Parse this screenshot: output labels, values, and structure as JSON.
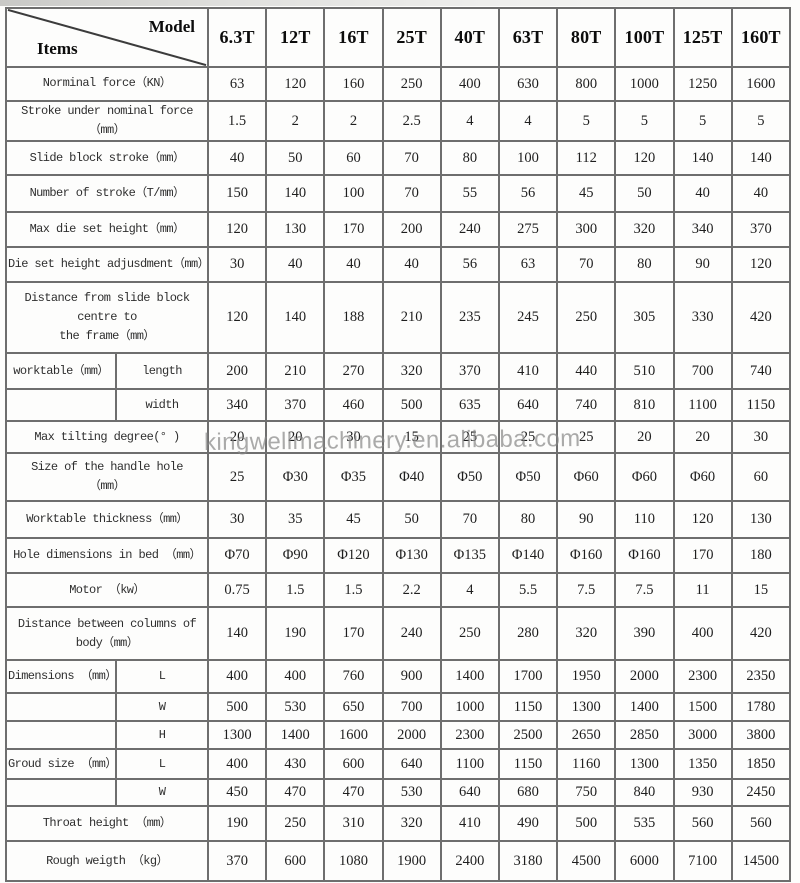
{
  "watermark": "kingwellmachinery.en.alibaba.com",
  "header": {
    "model_label": "Model",
    "items_label": "Items",
    "columns": [
      "6.3T",
      "12T",
      "16T",
      "25T",
      "40T",
      "63T",
      "80T",
      "100T",
      "125T",
      "160T"
    ]
  },
  "rows": [
    {
      "label": "Norminal force（KN）",
      "values": [
        "63",
        "120",
        "160",
        "250",
        "400",
        "630",
        "800",
        "1000",
        "1250",
        "1600"
      ]
    },
    {
      "label": "Stroke under nominal force（mm）",
      "values": [
        "1.5",
        "2",
        "2",
        "2.5",
        "4",
        "4",
        "5",
        "5",
        "5",
        "5"
      ]
    },
    {
      "label": "Slide block stroke（mm）",
      "values": [
        "40",
        "50",
        "60",
        "70",
        "80",
        "100",
        "112",
        "120",
        "140",
        "140"
      ]
    },
    {
      "label": "Number of stroke（T/mm）",
      "values": [
        "150",
        "140",
        "100",
        "70",
        "55",
        "56",
        "45",
        "50",
        "40",
        "40"
      ]
    },
    {
      "label": "Max die set height（mm）",
      "values": [
        "120",
        "130",
        "170",
        "200",
        "240",
        "275",
        "300",
        "320",
        "340",
        "370"
      ]
    },
    {
      "label": "Die set height adjusdment（mm）",
      "values": [
        "30",
        "40",
        "40",
        "40",
        "56",
        "63",
        "70",
        "80",
        "90",
        "120"
      ]
    },
    {
      "label": "Distance from slide block\ncentre to\nthe frame（mm）",
      "values": [
        "120",
        "140",
        "188",
        "210",
        "235",
        "245",
        "250",
        "305",
        "330",
        "420"
      ]
    },
    {
      "label": "worktable（mm）",
      "sub": "length",
      "values": [
        "200",
        "210",
        "270",
        "320",
        "370",
        "410",
        "440",
        "510",
        "700",
        "740"
      ]
    },
    {
      "label": "",
      "sub": "width",
      "values": [
        "340",
        "370",
        "460",
        "500",
        "635",
        "640",
        "740",
        "810",
        "1100",
        "1150"
      ]
    },
    {
      "label": "Max tilting degree(° )",
      "values": [
        "20",
        "20",
        "30",
        "15",
        "25",
        "25",
        "25",
        "20",
        "20",
        "30"
      ]
    },
    {
      "label": "Size of the handle hole\n（mm）",
      "values": [
        "25",
        "Φ30",
        "Φ35",
        "Φ40",
        "Φ50",
        "Φ50",
        "Φ60",
        "Φ60",
        "Φ60",
        "60"
      ]
    },
    {
      "label": "Worktable thickness（mm）",
      "values": [
        "30",
        "35",
        "45",
        "50",
        "70",
        "80",
        "90",
        "110",
        "120",
        "130"
      ]
    },
    {
      "label": "Hole dimensions in bed （mm）",
      "values": [
        "Φ70",
        "Φ90",
        "Φ120",
        "Φ130",
        "Φ135",
        "Φ140",
        "Φ160",
        "Φ160",
        "170",
        "180"
      ]
    },
    {
      "label": "Motor （kw）",
      "values": [
        "0.75",
        "1.5",
        "1.5",
        "2.2",
        "4",
        "5.5",
        "7.5",
        "7.5",
        "11",
        "15"
      ]
    },
    {
      "label": "Distance between columns of\nbody（mm）",
      "values": [
        "140",
        "190",
        "170",
        "240",
        "250",
        "280",
        "320",
        "390",
        "400",
        "420"
      ]
    },
    {
      "label": "Dimensions （mm）",
      "sub": "L",
      "values": [
        "400",
        "400",
        "760",
        "900",
        "1400",
        "1700",
        "1950",
        "2000",
        "2300",
        "2350"
      ]
    },
    {
      "label": "",
      "sub": "W",
      "values": [
        "500",
        "530",
        "650",
        "700",
        "1000",
        "1150",
        "1300",
        "1400",
        "1500",
        "1780"
      ]
    },
    {
      "label": "",
      "sub": "H",
      "values": [
        "1300",
        "1400",
        "1600",
        "2000",
        "2300",
        "2500",
        "2650",
        "2850",
        "3000",
        "3800"
      ]
    },
    {
      "label": "Groud size （mm）",
      "sub": "L",
      "values": [
        "400",
        "430",
        "600",
        "640",
        "1100",
        "1150",
        "1160",
        "1300",
        "1350",
        "1850"
      ]
    },
    {
      "label": "",
      "sub": "W",
      "values": [
        "450",
        "470",
        "470",
        "530",
        "640",
        "680",
        "750",
        "840",
        "930",
        "2450"
      ]
    },
    {
      "label": "Throat height （mm）",
      "values": [
        "190",
        "250",
        "310",
        "320",
        "410",
        "490",
        "500",
        "535",
        "560",
        "560"
      ]
    },
    {
      "label": "Rough weigth （kg）",
      "values": [
        "370",
        "600",
        "1080",
        "1900",
        "2400",
        "3180",
        "4500",
        "6000",
        "7100",
        "14500"
      ]
    }
  ],
  "colors": {
    "border": "#6e6e6e",
    "text": "#1e1e1e",
    "watermark_gray": "#878787",
    "background": "#fdfdfc"
  }
}
